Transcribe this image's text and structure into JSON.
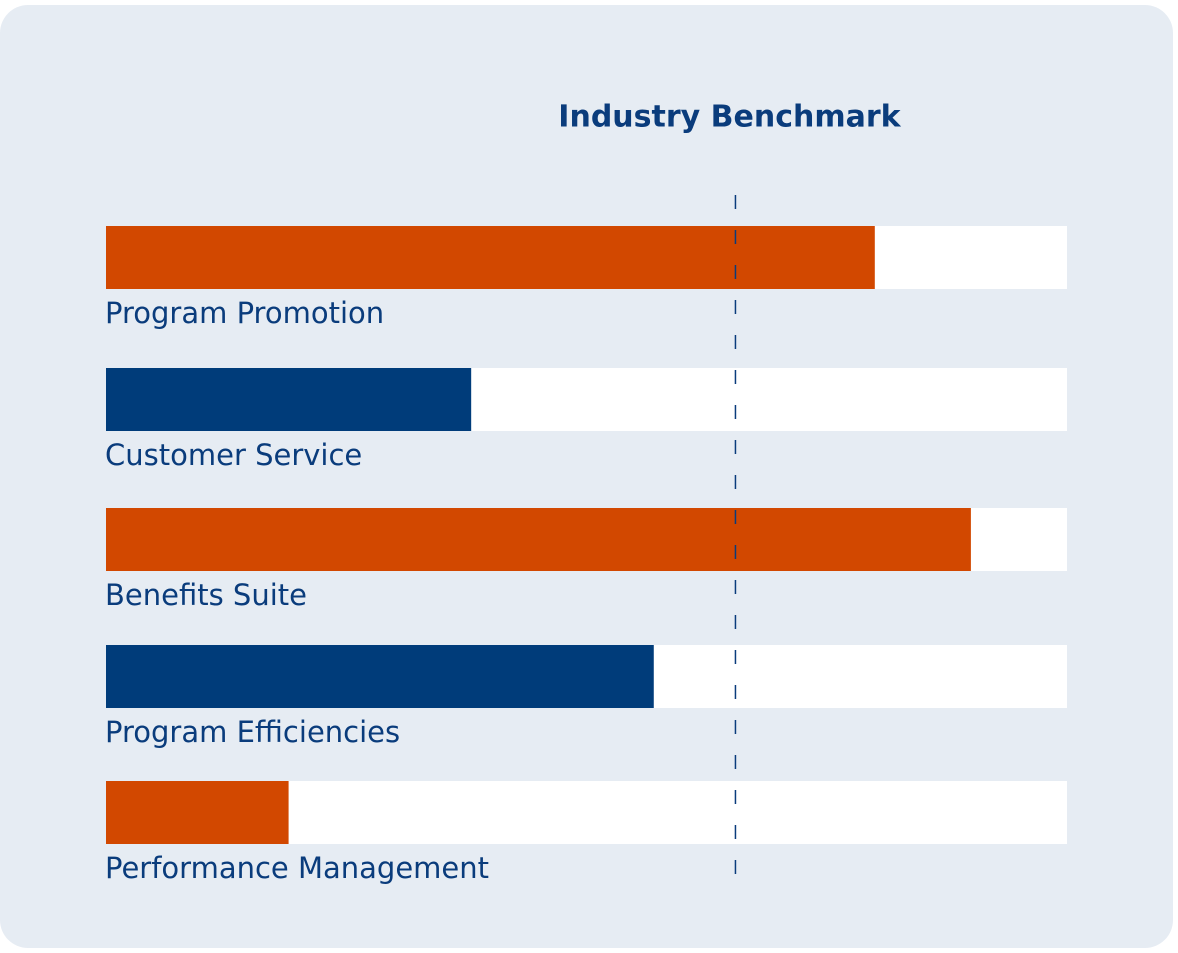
{
  "chart_data": {
    "type": "bar",
    "orientation": "horizontal",
    "categories": [
      "Program Promotion",
      "Customer Service",
      "Benefits Suite",
      "Program Efficiencies",
      "Performance Management"
    ],
    "values": [
      80,
      38,
      90,
      57,
      19
    ],
    "colors": [
      "#d24800",
      "#003c7a",
      "#d24800",
      "#003c7a",
      "#d24800"
    ],
    "xlim": [
      0,
      100
    ],
    "benchmark": {
      "label": "Industry Benchmark",
      "value": 65.5
    }
  }
}
